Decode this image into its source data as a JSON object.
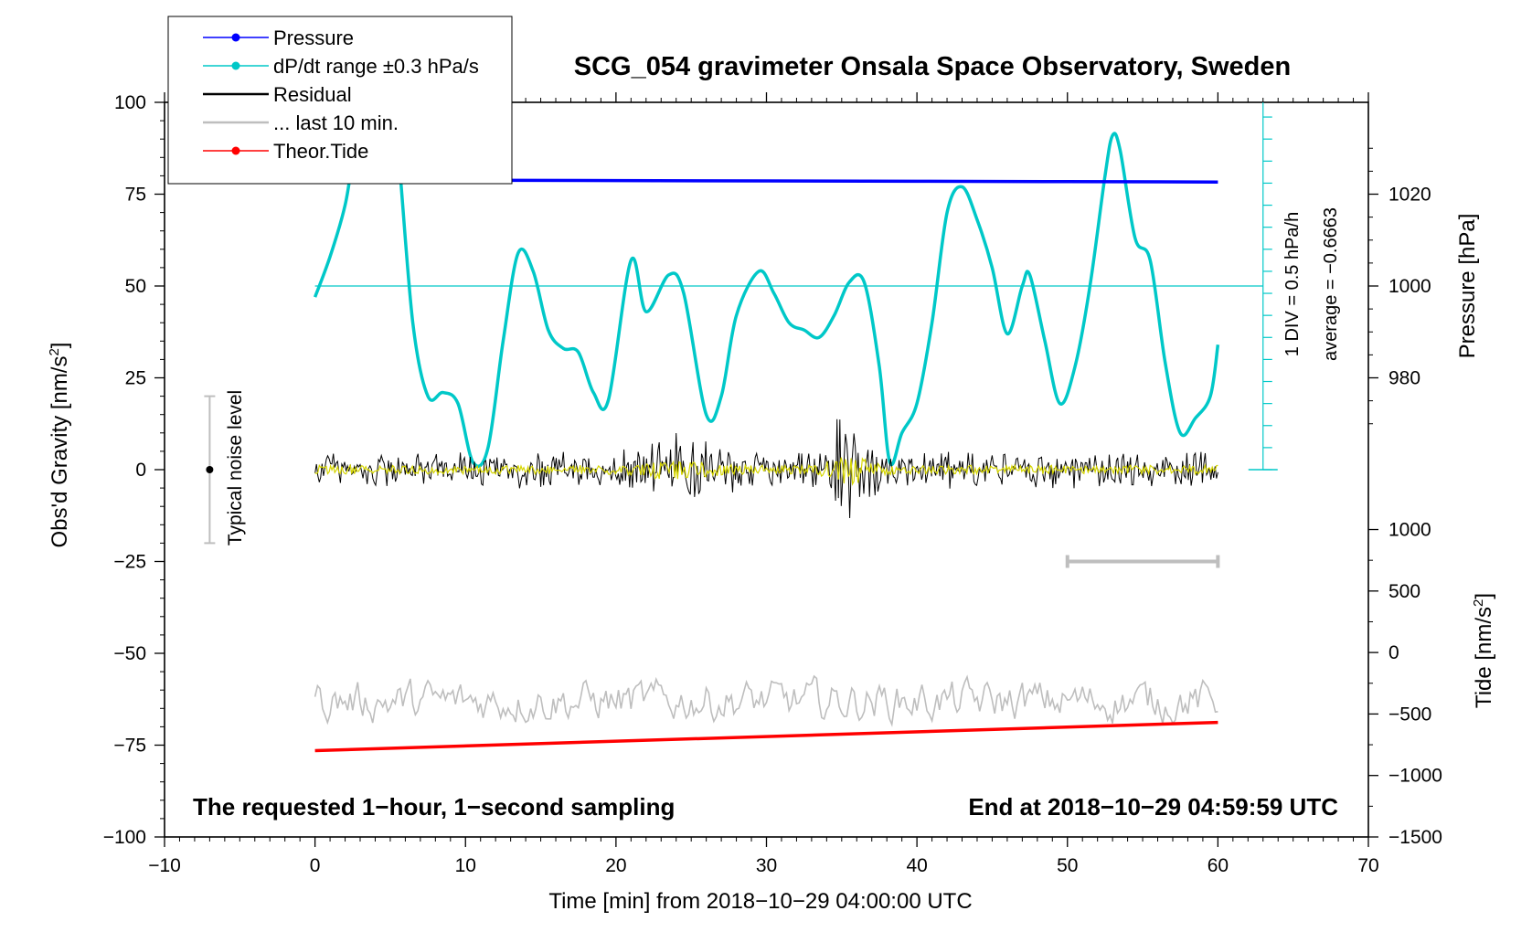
{
  "chart_data": {
    "type": "line",
    "title": "SCG_054 gravimeter Onsala Space Observatory, Sweden",
    "xlabel": "Time [min] from 2018−10−29 04:00:00 UTC",
    "ylabel": "Obs'd Gravity [nm/s",
    "ylabel_sup": "2",
    "ylabel_close": "]",
    "pressure_axis_label": "Pressure [hPa]",
    "tide_axis_label": "Tide [nm/s",
    "tide_axis_sup": "2",
    "tide_axis_close": "]",
    "xlim": [
      -10,
      70
    ],
    "ylim": [
      -100,
      100
    ],
    "x_ticks": [
      -10,
      0,
      10,
      20,
      30,
      40,
      50,
      60,
      70
    ],
    "x_tick_labels": [
      "−10",
      "0",
      "10",
      "20",
      "30",
      "40",
      "50",
      "60",
      "70"
    ],
    "y_ticks": [
      100,
      75,
      50,
      25,
      0,
      -25,
      -50,
      -75,
      -100
    ],
    "y_tick_labels": [
      "100",
      "75",
      "50",
      "25",
      "0",
      "−25",
      "−50",
      "−75",
      "−100"
    ],
    "pressure_ticks": [
      1020,
      1000,
      980
    ],
    "pressure_tick_labels": [
      "1020",
      "1000",
      "980"
    ],
    "pressure_scale": {
      "value_at_y50": 1000,
      "hpa_per_25": 20
    },
    "tide_ticks": [
      1000,
      500,
      0,
      -500,
      -1000,
      -1500
    ],
    "tide_tick_labels": [
      "1000",
      "500",
      "0",
      "−500",
      "−1000",
      "−1500"
    ],
    "tide_scale": {
      "y_at_1000": -16.3,
      "y_at_minus1500": -100
    },
    "legend": [
      {
        "label": "Pressure",
        "color": "#0000ff",
        "marker": true
      },
      {
        "label": "dP/dt range ±0.3 hPa/s",
        "color": "#00c8c8",
        "marker": true
      },
      {
        "label": "Residual",
        "color": "#000000",
        "marker": false
      },
      {
        "label": "... last 10 min.",
        "color": "#bebebe",
        "marker": false
      },
      {
        "label": "Theor.Tide",
        "color": "#ff0000",
        "marker": true
      }
    ],
    "legend_position": "top-left",
    "annotations": {
      "noise_label": "Typical noise level",
      "noise_range": [
        -20,
        20
      ],
      "noise_x": -7,
      "dpdt_div": "1 DIV = 0.5 hPa/h",
      "dpdt_average": "average = −0.6663",
      "bottom_left": "The requested 1−hour, 1−second sampling",
      "bottom_right": "End at 2018−10−29 04:59:59 UTC",
      "last10_bar_x": [
        50,
        60
      ],
      "last10_bar_y": -25
    },
    "dpdt_axis": {
      "x": 63,
      "y_min": 0,
      "y_max": 100,
      "tick_step": 6
    },
    "dpdt_reference_y": 50,
    "series": [
      {
        "name": "Pressure",
        "color": "#0000ff",
        "x": [
          0,
          5,
          10,
          20,
          30,
          40,
          50,
          60
        ],
        "values": [
          78.9,
          78.9,
          78.8,
          78.7,
          78.6,
          78.5,
          78.4,
          78.3
        ]
      },
      {
        "name": "dP/dt range ±0.3 hPa/s",
        "color": "#00c8c8",
        "x": [
          0,
          1,
          2,
          2.5,
          3,
          5,
          5.5,
          6.5,
          7.5,
          8.5,
          9.5,
          10.5,
          11.5,
          12.5,
          13.5,
          14.5,
          15.5,
          16.5,
          17.5,
          18.5,
          19.5,
          21,
          22,
          23.5,
          24.5,
          26,
          27,
          28,
          29.5,
          30.5,
          31.5,
          32.5,
          33.5,
          34.5,
          35.5,
          36.5,
          37.5,
          38.2,
          39,
          40,
          41,
          42,
          43,
          44,
          45,
          46,
          47,
          47.5,
          48.5,
          49.5,
          50.5,
          51.5,
          52.5,
          53,
          53.5,
          54.5,
          55.5,
          56.5,
          57.5,
          58.5,
          59.5,
          60
        ],
        "values": [
          47,
          58,
          72,
          85,
          100,
          100,
          88,
          40,
          20,
          21,
          18,
          2,
          6,
          35,
          59,
          54,
          38,
          33,
          32,
          21,
          19,
          57,
          43,
          53,
          48,
          15,
          20,
          42,
          54,
          48,
          40,
          38,
          36,
          42,
          51,
          51,
          28,
          2,
          10,
          18,
          40,
          70,
          77,
          68,
          55,
          37,
          50,
          53,
          35,
          18,
          28,
          50,
          80,
          91,
          87,
          63,
          57,
          29,
          10,
          14,
          20,
          34
        ]
      },
      {
        "name": "Residual",
        "color": "#000000",
        "x_range": [
          0,
          60
        ],
        "samples": 640,
        "base_amplitude": 3.5,
        "bursts": [
          {
            "center": 24,
            "width": 2.5,
            "gain": 2.4
          },
          {
            "center": 35.5,
            "width": 1.6,
            "gain": 3.3
          }
        ]
      },
      {
        "name": "Residual (smoothed)",
        "color": "#d6d600",
        "x_range": [
          0,
          60
        ],
        "samples": 640,
        "base_amplitude": 1.0
      },
      {
        "name": "... last 10 min.",
        "color": "#bebebe",
        "x_range": [
          0,
          60
        ],
        "samples": 360,
        "center": -63,
        "amplitude": 6
      },
      {
        "name": "Theor.Tide",
        "color": "#ff0000",
        "x": [
          0,
          60
        ],
        "values": [
          -76.5,
          -68.8
        ]
      }
    ]
  }
}
